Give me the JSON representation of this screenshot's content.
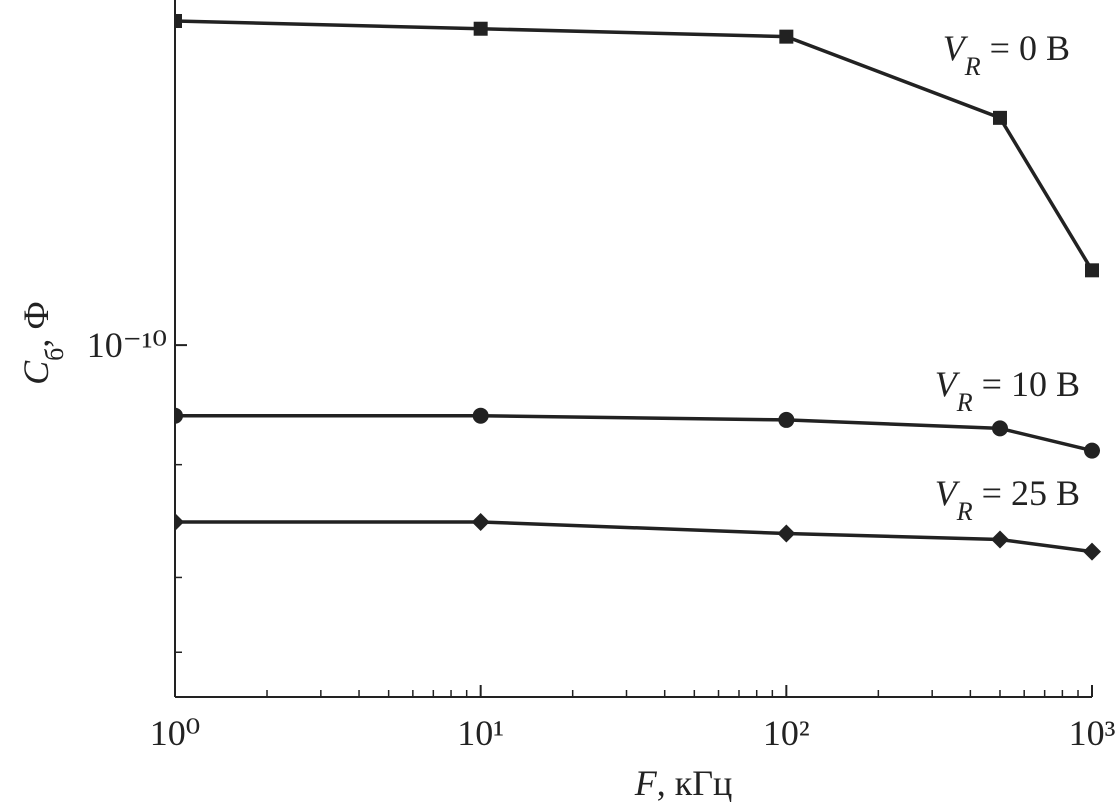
{
  "chart_data": {
    "type": "line",
    "x_label": "F, кГц",
    "y_label": "Cб, Ф",
    "log_x": true,
    "log_y": true,
    "xlim": [
      1,
      1000
    ],
    "xticks": [
      {
        "value": 1,
        "label": "10⁰"
      },
      {
        "value": 10,
        "label": "10¹"
      },
      {
        "value": 100,
        "label": "10²"
      },
      {
        "value": 1000,
        "label": "10³"
      }
    ],
    "xticks_minor": [
      2,
      3,
      4,
      5,
      6,
      7,
      8,
      9,
      20,
      30,
      40,
      50,
      60,
      70,
      80,
      90,
      200,
      300,
      400,
      500,
      600,
      700,
      800,
      900
    ],
    "ylim": [
      3.5e-11,
      2.8e-10
    ],
    "yticks": [
      {
        "value": 1e-10,
        "label": "10⁻¹⁰"
      }
    ],
    "yticks_minor": [
      7e-11,
      5e-11,
      4e-11
    ],
    "x": [
      1,
      10,
      100,
      500,
      1000
    ],
    "series": [
      {
        "name": "VR = 0 В",
        "color": "#222222",
        "marker": "square",
        "values": [
          2.63e-10,
          2.57e-10,
          2.51e-10,
          1.97e-10,
          1.25e-10
        ]
      },
      {
        "name": "VR = 10 В",
        "color": "#222222",
        "marker": "circle",
        "values": [
          8.1e-11,
          8.1e-11,
          8e-11,
          7.8e-11,
          7.3e-11
        ]
      },
      {
        "name": "VR = 25 В",
        "color": "#222222",
        "marker": "diamond",
        "values": [
          5.9e-11,
          5.9e-11,
          5.7e-11,
          5.6e-11,
          5.4e-11
        ]
      }
    ]
  }
}
